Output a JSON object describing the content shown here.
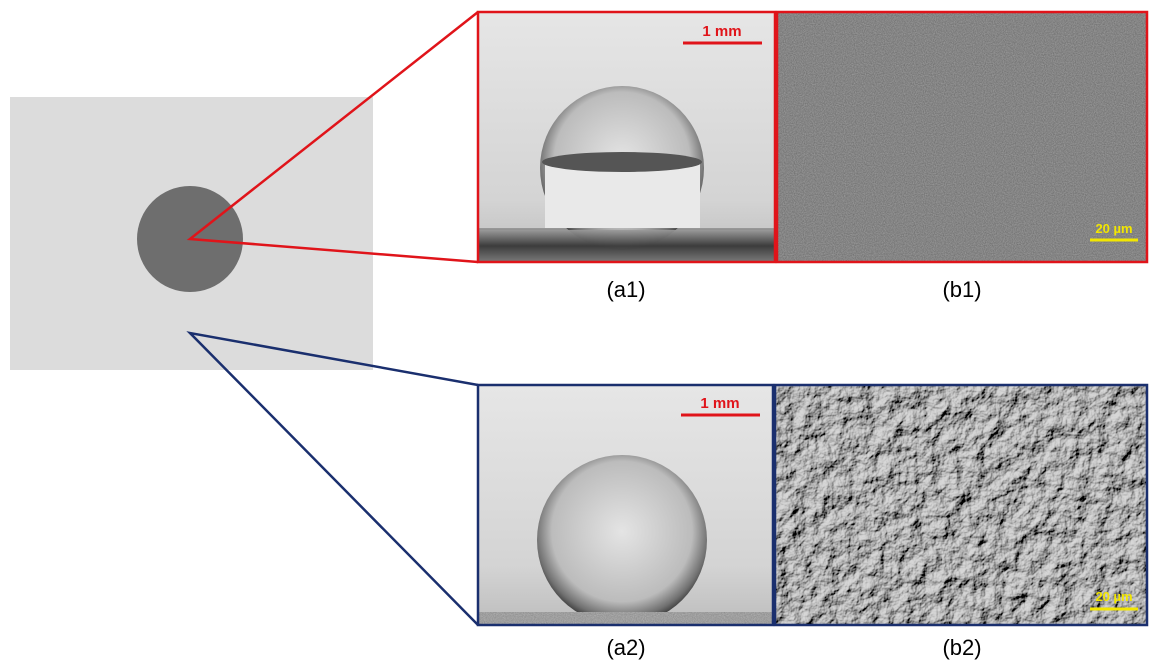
{
  "top": {
    "droplet": {
      "label": "(a1)",
      "scale_bar": "1 mm"
    },
    "sem": {
      "label": "(b1)",
      "scale_bar": "20 µm"
    }
  },
  "bottom": {
    "droplet": {
      "label": "(a2)",
      "scale_bar": "1 mm"
    },
    "sem": {
      "label": "(b2)",
      "scale_bar": "20 µm"
    }
  }
}
